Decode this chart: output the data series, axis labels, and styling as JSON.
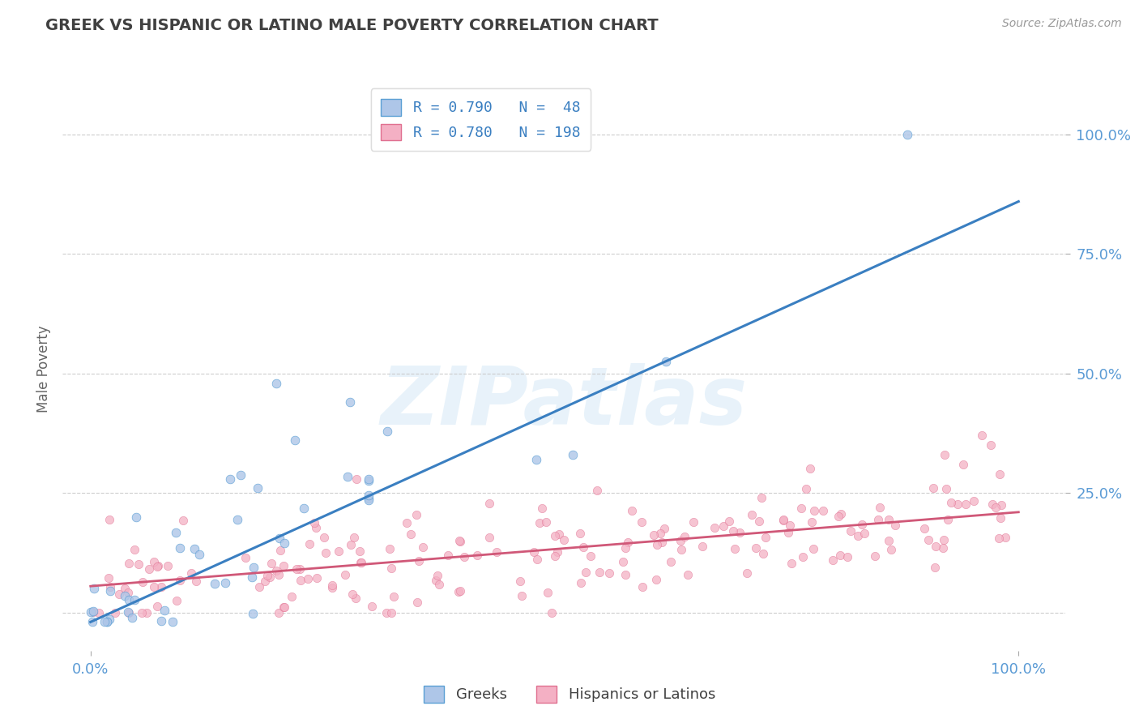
{
  "title": "GREEK VS HISPANIC OR LATINO MALE POVERTY CORRELATION CHART",
  "source_text": "Source: ZipAtlas.com",
  "ylabel": "Male Poverty",
  "watermark": "ZIPatlas",
  "legend_entries": [
    {
      "label": "Greeks",
      "R": 0.79,
      "N": 48,
      "color": "#aec6e8",
      "edge_color": "#5a9fd4",
      "line_color": "#3a7fc1"
    },
    {
      "label": "Hispanics or Latinos",
      "R": 0.78,
      "N": 198,
      "color": "#f4b0c4",
      "edge_color": "#e07090",
      "line_color": "#d05878"
    }
  ],
  "x_ticks_show": [
    0.0,
    100.0
  ],
  "y_ticks_show": [
    25.0,
    50.0,
    75.0,
    100.0
  ],
  "y_grid_lines": [
    0.0,
    25.0,
    50.0,
    75.0,
    100.0
  ],
  "xlim": [
    -3,
    105
  ],
  "ylim": [
    -8,
    110
  ],
  "background_color": "#ffffff",
  "grid_color": "#c8c8c8",
  "title_color": "#404040",
  "tick_label_color": "#5b9bd5",
  "axis_label_color": "#666666",
  "greek_slope": 0.88,
  "greek_intercept": -2.0,
  "hispanic_slope": 0.155,
  "hispanic_intercept": 5.5
}
